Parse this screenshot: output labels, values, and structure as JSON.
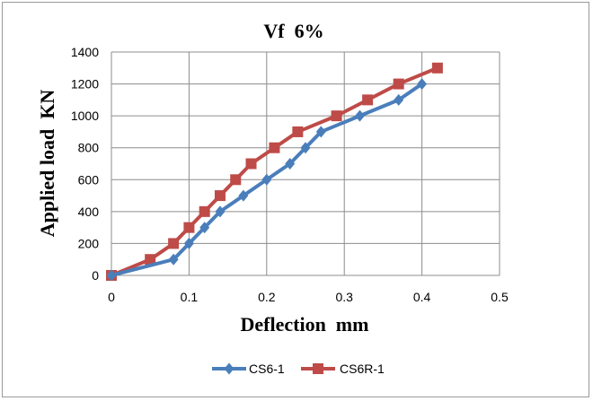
{
  "chart_data": {
    "type": "line",
    "title": "Vf  6%",
    "xlabel": "Deflection  mm",
    "ylabel": "Applied load  KN",
    "xlim": [
      0,
      0.5
    ],
    "ylim": [
      0,
      1400
    ],
    "xticks": [
      "0",
      "0.1",
      "0.2",
      "0.3",
      "0.4",
      "0.5"
    ],
    "yticks": [
      "0",
      "200",
      "400",
      "600",
      "800",
      "1000",
      "1200",
      "1400"
    ],
    "grid": true,
    "legend_position": "bottom",
    "series": [
      {
        "name": "CS6-1",
        "color": "#4a7ebb",
        "marker": "diamond",
        "x": [
          0,
          0.08,
          0.1,
          0.12,
          0.14,
          0.17,
          0.2,
          0.23,
          0.25,
          0.27,
          0.32,
          0.37,
          0.4
        ],
        "y": [
          0,
          100,
          200,
          300,
          400,
          500,
          600,
          700,
          800,
          900,
          1000,
          1100,
          1200
        ]
      },
      {
        "name": "CS6R-1",
        "color": "#be4b48",
        "marker": "square",
        "x": [
          0,
          0.05,
          0.08,
          0.1,
          0.12,
          0.14,
          0.16,
          0.18,
          0.21,
          0.24,
          0.29,
          0.33,
          0.37,
          0.42
        ],
        "y": [
          0,
          100,
          200,
          300,
          400,
          500,
          600,
          700,
          800,
          900,
          1000,
          1100,
          1200,
          1300
        ]
      }
    ]
  }
}
